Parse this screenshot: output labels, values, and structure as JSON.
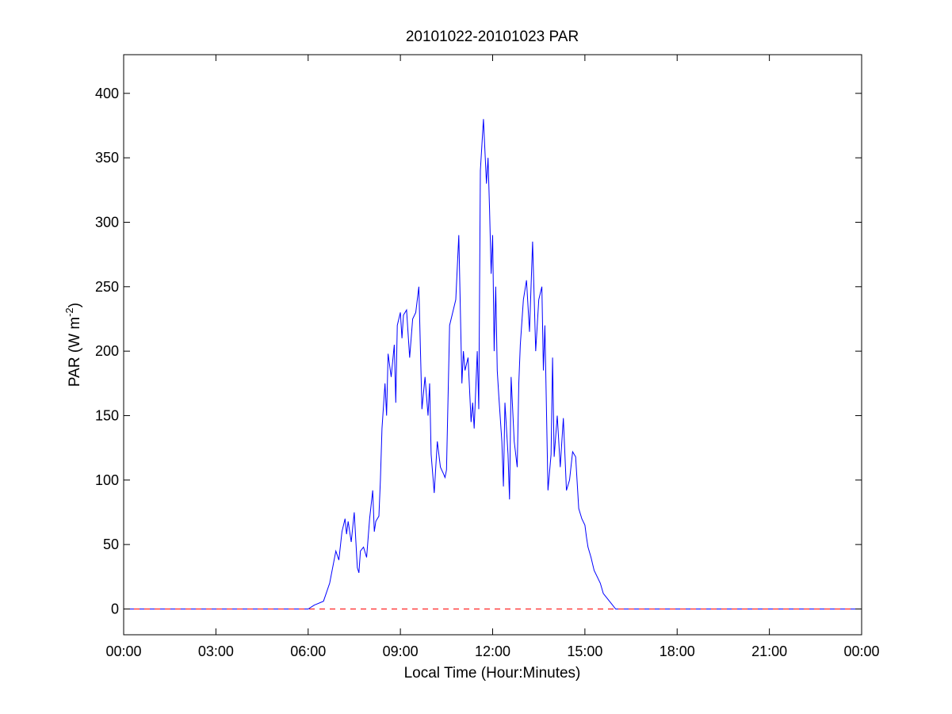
{
  "chart_data": {
    "type": "line",
    "title": "20101022-20101023 PAR",
    "xlabel": "Local Time (Hour:Minutes)",
    "ylabel_main": "PAR (W m",
    "ylabel_sup": "-2",
    "ylabel_close": ")",
    "xlim": [
      0,
      24
    ],
    "ylim": [
      -20,
      430
    ],
    "xticks": [
      0,
      3,
      6,
      9,
      12,
      15,
      18,
      21,
      24
    ],
    "xtick_labels": [
      "00:00",
      "03:00",
      "06:00",
      "09:00",
      "12:00",
      "15:00",
      "18:00",
      "21:00",
      "00:00"
    ],
    "yticks": [
      0,
      50,
      100,
      150,
      200,
      250,
      300,
      350,
      400
    ],
    "ytick_labels": [
      "0",
      "50",
      "100",
      "150",
      "200",
      "250",
      "300",
      "350",
      "400"
    ],
    "grid": false,
    "series": [
      {
        "color": "#0000ff",
        "style": "solid",
        "x": [
          0,
          6.0,
          6.2,
          6.5,
          6.7,
          6.9,
          7.0,
          7.1,
          7.2,
          7.25,
          7.3,
          7.4,
          7.5,
          7.6,
          7.65,
          7.7,
          7.8,
          7.9,
          8.0,
          8.1,
          8.15,
          8.2,
          8.3,
          8.35,
          8.4,
          8.5,
          8.55,
          8.6,
          8.7,
          8.8,
          8.85,
          8.9,
          9.0,
          9.05,
          9.1,
          9.2,
          9.3,
          9.4,
          9.5,
          9.6,
          9.7,
          9.8,
          9.9,
          9.95,
          10.0,
          10.1,
          10.2,
          10.3,
          10.4,
          10.45,
          10.5,
          10.6,
          10.8,
          10.9,
          11.0,
          11.05,
          11.1,
          11.2,
          11.3,
          11.35,
          11.4,
          11.5,
          11.55,
          11.6,
          11.7,
          11.75,
          11.8,
          11.85,
          11.9,
          11.95,
          12.0,
          12.05,
          12.1,
          12.15,
          12.2,
          12.3,
          12.35,
          12.4,
          12.5,
          12.55,
          12.6,
          12.7,
          12.8,
          12.85,
          12.9,
          13.0,
          13.1,
          13.2,
          13.3,
          13.4,
          13.5,
          13.6,
          13.65,
          13.7,
          13.8,
          13.9,
          13.95,
          14.0,
          14.1,
          14.2,
          14.25,
          14.3,
          14.4,
          14.5,
          14.6,
          14.7,
          14.8,
          14.9,
          15.0,
          15.05,
          15.1,
          15.2,
          15.3,
          15.4,
          15.5,
          15.6,
          15.8,
          16.0,
          16.3,
          16.6,
          16.9,
          17.1,
          17.3,
          17.5,
          24
        ],
        "y": [
          0,
          0,
          3,
          6,
          20,
          45,
          38,
          60,
          70,
          58,
          68,
          52,
          75,
          32,
          28,
          45,
          48,
          40,
          70,
          92,
          60,
          68,
          72,
          100,
          140,
          175,
          150,
          198,
          180,
          205,
          160,
          220,
          230,
          210,
          228,
          232,
          195,
          225,
          230,
          250,
          155,
          180,
          150,
          175,
          120,
          90,
          130,
          110,
          105,
          102,
          108,
          220,
          240,
          290,
          175,
          200,
          185,
          195,
          145,
          160,
          140,
          200,
          155,
          340,
          380,
          355,
          330,
          350,
          310,
          260,
          290,
          200,
          250,
          185,
          165,
          130,
          95,
          160,
          120,
          85,
          180,
          130,
          110,
          175,
          205,
          240,
          255,
          215,
          285,
          200,
          240,
          250,
          185,
          220,
          92,
          120,
          195,
          118,
          150,
          110,
          130,
          148,
          92,
          100,
          122,
          118,
          78,
          70,
          65,
          56,
          48,
          40,
          30,
          25,
          20,
          12,
          6,
          0,
          0,
          0,
          0,
          0,
          0,
          0,
          0
        ]
      },
      {
        "color": "#ff0000",
        "style": "dashed",
        "x": [
          0,
          24
        ],
        "y": [
          0,
          0
        ]
      }
    ]
  }
}
